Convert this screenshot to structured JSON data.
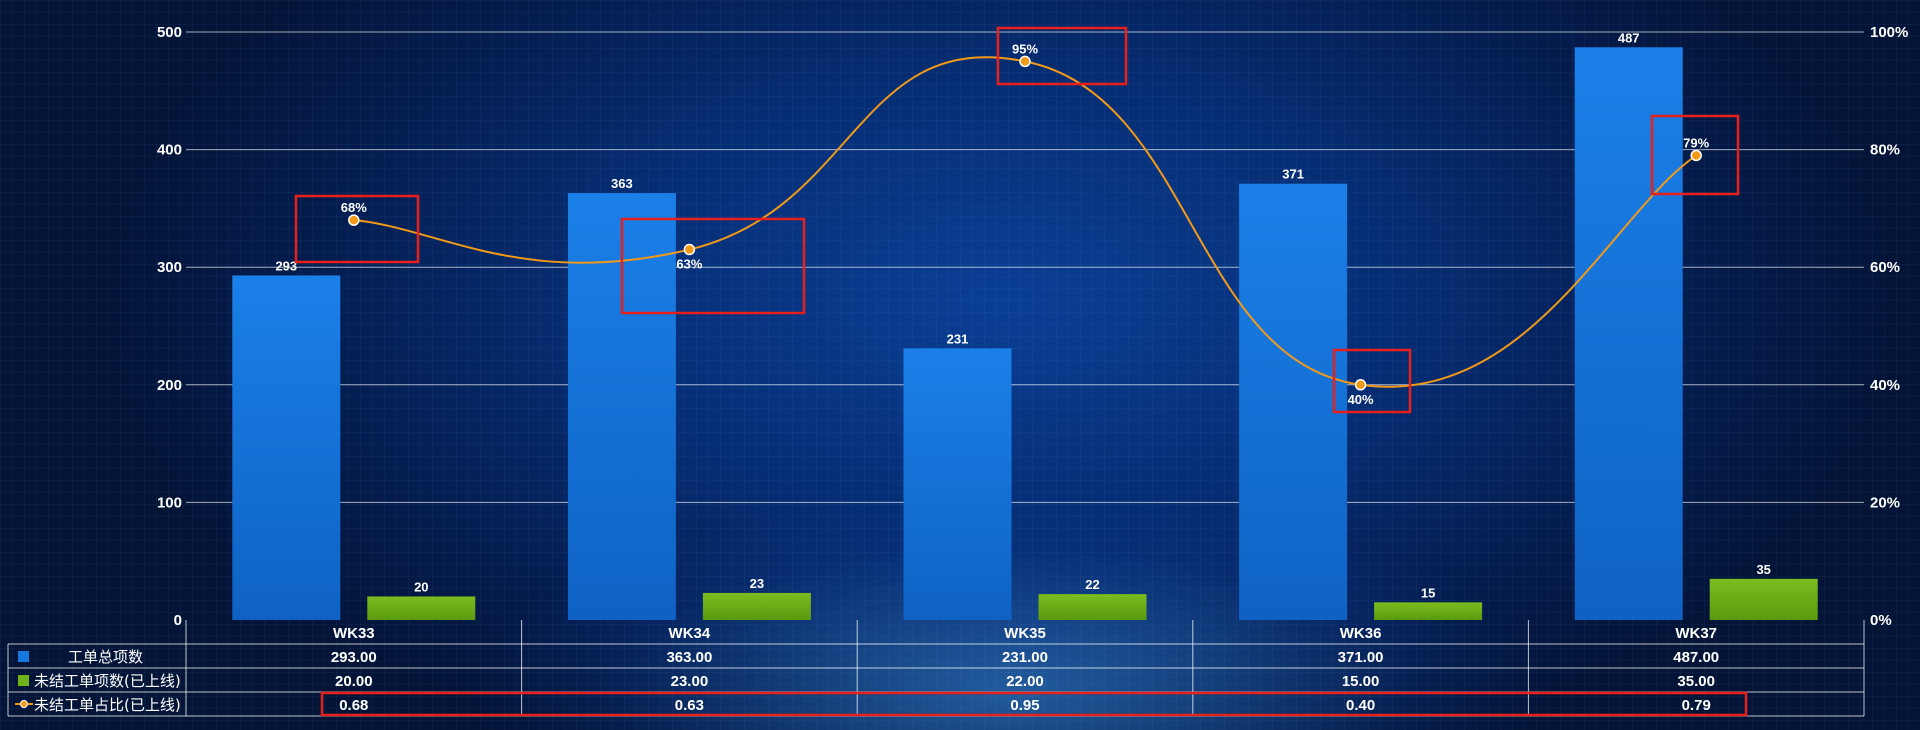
{
  "chart_data": {
    "type": "bar",
    "categories": [
      "WK33",
      "WK34",
      "WK35",
      "WK36",
      "WK37"
    ],
    "series": [
      {
        "name": "工单总项数",
        "type": "bar",
        "axis": "left",
        "color": "#1679e0",
        "values": [
          293,
          363,
          231,
          371,
          487
        ]
      },
      {
        "name": "未结工单项数(已上线)",
        "type": "bar",
        "axis": "left",
        "color": "#6fb21a",
        "values": [
          20,
          23,
          22,
          15,
          35
        ]
      },
      {
        "name": "未结工单占比(已上线)",
        "type": "line",
        "axis": "right",
        "color": "#f29a18",
        "values": [
          0.68,
          0.63,
          0.95,
          0.4,
          0.79
        ]
      }
    ],
    "line_labels": [
      "68%",
      "63%",
      "95%",
      "40%",
      "79%"
    ],
    "ylim": [
      0,
      500
    ],
    "yticks": [
      "0",
      "100",
      "200",
      "300",
      "400",
      "500"
    ],
    "y2lim": [
      0,
      1
    ],
    "y2ticks": [
      "0%",
      "20%",
      "40%",
      "60%",
      "80%",
      "100%"
    ],
    "table_rows": [
      {
        "label": "工单总项数",
        "cells": [
          "293.00",
          "363.00",
          "231.00",
          "371.00",
          "487.00"
        ]
      },
      {
        "label": "未结工单项数(已上线)",
        "cells": [
          "20.00",
          "23.00",
          "22.00",
          "15.00",
          "35.00"
        ]
      },
      {
        "label": "未结工单占比(已上线)",
        "cells": [
          "0.68",
          "0.63",
          "0.95",
          "0.40",
          "0.79"
        ]
      }
    ],
    "grid": true,
    "highlight_color": "#e8201c"
  }
}
